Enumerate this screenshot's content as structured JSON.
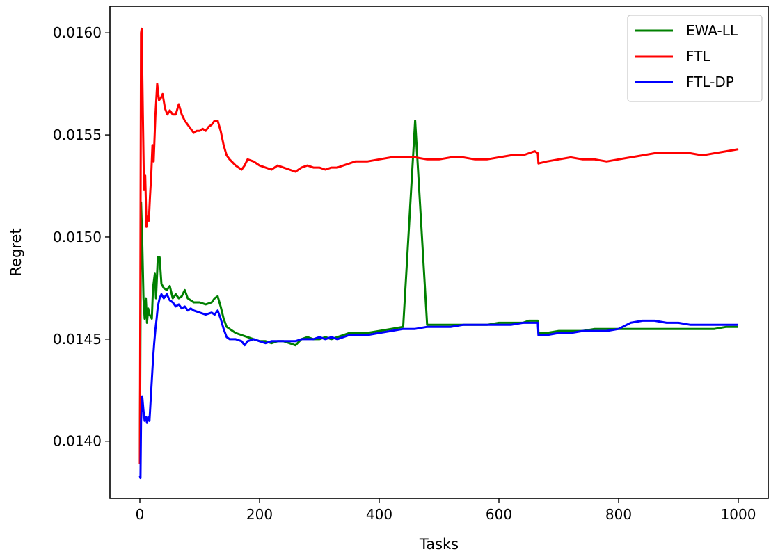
{
  "chart_data": {
    "type": "line",
    "title": "",
    "xlabel": "Tasks",
    "ylabel": "Regret",
    "xlim": [
      -50,
      1050
    ],
    "ylim": [
      0.01372,
      0.01613
    ],
    "xticks": [
      0,
      200,
      400,
      600,
      800,
      1000
    ],
    "xtick_labels": [
      "0",
      "200",
      "400",
      "600",
      "800",
      "1000"
    ],
    "yticks": [
      0.014,
      0.0145,
      0.015,
      0.0155,
      0.016
    ],
    "ytick_labels": [
      "0.0140",
      "0.0145",
      "0.0150",
      "0.0155",
      "0.0160"
    ],
    "grid": false,
    "legend_position": "top-right",
    "series": [
      {
        "name": "EWA-LL",
        "color": "#008000",
        "points": [
          [
            0,
            0.01389
          ],
          [
            2,
            0.01517
          ],
          [
            4,
            0.01498
          ],
          [
            6,
            0.0147
          ],
          [
            8,
            0.0146
          ],
          [
            10,
            0.0147
          ],
          [
            12,
            0.01458
          ],
          [
            14,
            0.01465
          ],
          [
            16,
            0.01462
          ],
          [
            20,
            0.0146
          ],
          [
            22,
            0.01475
          ],
          [
            25,
            0.01482
          ],
          [
            27,
            0.0147
          ],
          [
            30,
            0.0149
          ],
          [
            33,
            0.0149
          ],
          [
            36,
            0.01477
          ],
          [
            40,
            0.01475
          ],
          [
            45,
            0.01474
          ],
          [
            50,
            0.01476
          ],
          [
            55,
            0.0147
          ],
          [
            60,
            0.01472
          ],
          [
            65,
            0.0147
          ],
          [
            70,
            0.01471
          ],
          [
            75,
            0.01474
          ],
          [
            80,
            0.0147
          ],
          [
            85,
            0.01469
          ],
          [
            90,
            0.01468
          ],
          [
            100,
            0.01468
          ],
          [
            110,
            0.01467
          ],
          [
            120,
            0.01468
          ],
          [
            125,
            0.0147
          ],
          [
            130,
            0.01471
          ],
          [
            135,
            0.01466
          ],
          [
            140,
            0.0146
          ],
          [
            145,
            0.01456
          ],
          [
            150,
            0.01455
          ],
          [
            160,
            0.01453
          ],
          [
            170,
            0.01452
          ],
          [
            180,
            0.01451
          ],
          [
            190,
            0.0145
          ],
          [
            200,
            0.01449
          ],
          [
            210,
            0.01449
          ],
          [
            220,
            0.01448
          ],
          [
            230,
            0.01449
          ],
          [
            240,
            0.01449
          ],
          [
            250,
            0.01448
          ],
          [
            260,
            0.01447
          ],
          [
            270,
            0.0145
          ],
          [
            280,
            0.01451
          ],
          [
            290,
            0.0145
          ],
          [
            300,
            0.0145
          ],
          [
            310,
            0.01451
          ],
          [
            320,
            0.0145
          ],
          [
            330,
            0.01451
          ],
          [
            340,
            0.01452
          ],
          [
            350,
            0.01453
          ],
          [
            360,
            0.01453
          ],
          [
            380,
            0.01453
          ],
          [
            400,
            0.01454
          ],
          [
            420,
            0.01455
          ],
          [
            440,
            0.01456
          ],
          [
            460,
            0.01557
          ],
          [
            480,
            0.01457
          ],
          [
            500,
            0.01457
          ],
          [
            520,
            0.01457
          ],
          [
            540,
            0.01457
          ],
          [
            560,
            0.01457
          ],
          [
            580,
            0.01457
          ],
          [
            600,
            0.01458
          ],
          [
            620,
            0.01458
          ],
          [
            640,
            0.01458
          ],
          [
            650,
            0.01459
          ],
          [
            660,
            0.01459
          ],
          [
            665,
            0.01459
          ],
          [
            666,
            0.01453
          ],
          [
            680,
            0.01453
          ],
          [
            700,
            0.01454
          ],
          [
            720,
            0.01454
          ],
          [
            740,
            0.01454
          ],
          [
            760,
            0.01455
          ],
          [
            780,
            0.01455
          ],
          [
            800,
            0.01455
          ],
          [
            820,
            0.01455
          ],
          [
            840,
            0.01455
          ],
          [
            860,
            0.01455
          ],
          [
            880,
            0.01455
          ],
          [
            900,
            0.01455
          ],
          [
            920,
            0.01455
          ],
          [
            940,
            0.01455
          ],
          [
            960,
            0.01455
          ],
          [
            980,
            0.01456
          ],
          [
            1000,
            0.01456
          ]
        ]
      },
      {
        "name": "FTL",
        "color": "#ff0000",
        "points": [
          [
            0,
            0.01389
          ],
          [
            2,
            0.016
          ],
          [
            3,
            0.01602
          ],
          [
            5,
            0.0156
          ],
          [
            7,
            0.01523
          ],
          [
            9,
            0.0153
          ],
          [
            11,
            0.01505
          ],
          [
            13,
            0.0151
          ],
          [
            15,
            0.01508
          ],
          [
            17,
            0.0152
          ],
          [
            19,
            0.0153
          ],
          [
            21,
            0.01545
          ],
          [
            23,
            0.01537
          ],
          [
            26,
            0.0156
          ],
          [
            29,
            0.01575
          ],
          [
            32,
            0.01567
          ],
          [
            35,
            0.01568
          ],
          [
            38,
            0.0157
          ],
          [
            42,
            0.01563
          ],
          [
            46,
            0.0156
          ],
          [
            50,
            0.01562
          ],
          [
            55,
            0.0156
          ],
          [
            60,
            0.0156
          ],
          [
            65,
            0.01565
          ],
          [
            70,
            0.0156
          ],
          [
            75,
            0.01557
          ],
          [
            80,
            0.01555
          ],
          [
            85,
            0.01553
          ],
          [
            90,
            0.01551
          ],
          [
            95,
            0.01552
          ],
          [
            100,
            0.01552
          ],
          [
            105,
            0.01553
          ],
          [
            110,
            0.01552
          ],
          [
            115,
            0.01554
          ],
          [
            120,
            0.01555
          ],
          [
            125,
            0.01557
          ],
          [
            130,
            0.01557
          ],
          [
            135,
            0.01552
          ],
          [
            140,
            0.01545
          ],
          [
            145,
            0.0154
          ],
          [
            150,
            0.01538
          ],
          [
            160,
            0.01535
          ],
          [
            170,
            0.01533
          ],
          [
            175,
            0.01535
          ],
          [
            180,
            0.01538
          ],
          [
            190,
            0.01537
          ],
          [
            200,
            0.01535
          ],
          [
            210,
            0.01534
          ],
          [
            220,
            0.01533
          ],
          [
            230,
            0.01535
          ],
          [
            240,
            0.01534
          ],
          [
            250,
            0.01533
          ],
          [
            260,
            0.01532
          ],
          [
            270,
            0.01534
          ],
          [
            280,
            0.01535
          ],
          [
            290,
            0.01534
          ],
          [
            300,
            0.01534
          ],
          [
            310,
            0.01533
          ],
          [
            320,
            0.01534
          ],
          [
            330,
            0.01534
          ],
          [
            340,
            0.01535
          ],
          [
            350,
            0.01536
          ],
          [
            360,
            0.01537
          ],
          [
            380,
            0.01537
          ],
          [
            400,
            0.01538
          ],
          [
            420,
            0.01539
          ],
          [
            440,
            0.01539
          ],
          [
            460,
            0.01539
          ],
          [
            480,
            0.01538
          ],
          [
            500,
            0.01538
          ],
          [
            520,
            0.01539
          ],
          [
            540,
            0.01539
          ],
          [
            560,
            0.01538
          ],
          [
            580,
            0.01538
          ],
          [
            600,
            0.01539
          ],
          [
            620,
            0.0154
          ],
          [
            640,
            0.0154
          ],
          [
            650,
            0.01541
          ],
          [
            660,
            0.01542
          ],
          [
            665,
            0.01541
          ],
          [
            666,
            0.01536
          ],
          [
            680,
            0.01537
          ],
          [
            700,
            0.01538
          ],
          [
            720,
            0.01539
          ],
          [
            740,
            0.01538
          ],
          [
            760,
            0.01538
          ],
          [
            780,
            0.01537
          ],
          [
            800,
            0.01538
          ],
          [
            820,
            0.01539
          ],
          [
            840,
            0.0154
          ],
          [
            860,
            0.01541
          ],
          [
            880,
            0.01541
          ],
          [
            900,
            0.01541
          ],
          [
            920,
            0.01541
          ],
          [
            940,
            0.0154
          ],
          [
            960,
            0.01541
          ],
          [
            980,
            0.01542
          ],
          [
            1000,
            0.01543
          ]
        ]
      },
      {
        "name": "FTL-DP",
        "color": "#0000ff",
        "points": [
          [
            0,
            0.01383
          ],
          [
            1,
            0.01382
          ],
          [
            2,
            0.0141
          ],
          [
            4,
            0.01422
          ],
          [
            6,
            0.01415
          ],
          [
            8,
            0.0141
          ],
          [
            10,
            0.01412
          ],
          [
            12,
            0.01409
          ],
          [
            14,
            0.01412
          ],
          [
            16,
            0.0141
          ],
          [
            18,
            0.0142
          ],
          [
            20,
            0.0143
          ],
          [
            22,
            0.0144
          ],
          [
            24,
            0.01448
          ],
          [
            26,
            0.01455
          ],
          [
            28,
            0.0146
          ],
          [
            30,
            0.01466
          ],
          [
            33,
            0.0147
          ],
          [
            36,
            0.01472
          ],
          [
            40,
            0.0147
          ],
          [
            45,
            0.01472
          ],
          [
            50,
            0.01469
          ],
          [
            55,
            0.01468
          ],
          [
            60,
            0.01466
          ],
          [
            65,
            0.01467
          ],
          [
            70,
            0.01465
          ],
          [
            75,
            0.01466
          ],
          [
            80,
            0.01464
          ],
          [
            85,
            0.01465
          ],
          [
            90,
            0.01464
          ],
          [
            100,
            0.01463
          ],
          [
            110,
            0.01462
          ],
          [
            120,
            0.01463
          ],
          [
            125,
            0.01462
          ],
          [
            130,
            0.01464
          ],
          [
            135,
            0.0146
          ],
          [
            140,
            0.01455
          ],
          [
            145,
            0.01451
          ],
          [
            150,
            0.0145
          ],
          [
            160,
            0.0145
          ],
          [
            170,
            0.01449
          ],
          [
            175,
            0.01447
          ],
          [
            180,
            0.01449
          ],
          [
            190,
            0.0145
          ],
          [
            200,
            0.01449
          ],
          [
            210,
            0.01448
          ],
          [
            220,
            0.01449
          ],
          [
            230,
            0.01449
          ],
          [
            240,
            0.01449
          ],
          [
            250,
            0.01449
          ],
          [
            260,
            0.01449
          ],
          [
            270,
            0.0145
          ],
          [
            280,
            0.0145
          ],
          [
            290,
            0.0145
          ],
          [
            300,
            0.01451
          ],
          [
            310,
            0.0145
          ],
          [
            320,
            0.01451
          ],
          [
            330,
            0.0145
          ],
          [
            340,
            0.01451
          ],
          [
            350,
            0.01452
          ],
          [
            360,
            0.01452
          ],
          [
            380,
            0.01452
          ],
          [
            400,
            0.01453
          ],
          [
            420,
            0.01454
          ],
          [
            440,
            0.01455
          ],
          [
            460,
            0.01455
          ],
          [
            480,
            0.01456
          ],
          [
            500,
            0.01456
          ],
          [
            520,
            0.01456
          ],
          [
            540,
            0.01457
          ],
          [
            560,
            0.01457
          ],
          [
            580,
            0.01457
          ],
          [
            600,
            0.01457
          ],
          [
            620,
            0.01457
          ],
          [
            640,
            0.01458
          ],
          [
            650,
            0.01458
          ],
          [
            660,
            0.01458
          ],
          [
            665,
            0.01458
          ],
          [
            666,
            0.01452
          ],
          [
            680,
            0.01452
          ],
          [
            700,
            0.01453
          ],
          [
            720,
            0.01453
          ],
          [
            740,
            0.01454
          ],
          [
            760,
            0.01454
          ],
          [
            780,
            0.01454
          ],
          [
            800,
            0.01455
          ],
          [
            820,
            0.01458
          ],
          [
            840,
            0.01459
          ],
          [
            860,
            0.01459
          ],
          [
            880,
            0.01458
          ],
          [
            900,
            0.01458
          ],
          [
            920,
            0.01457
          ],
          [
            940,
            0.01457
          ],
          [
            960,
            0.01457
          ],
          [
            980,
            0.01457
          ],
          [
            1000,
            0.01457
          ]
        ]
      }
    ]
  }
}
